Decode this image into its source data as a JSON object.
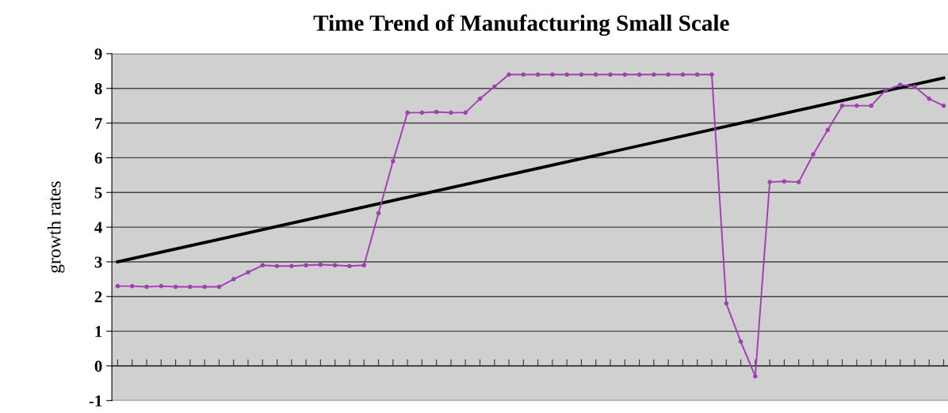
{
  "chart_data": {
    "type": "line",
    "title": "Time Trend of Manufacturing Small Scale",
    "ylabel": "growth rates",
    "categories": [
      null,
      null,
      null,
      null,
      null,
      null,
      null,
      null,
      null,
      null,
      null,
      null,
      null,
      null,
      null,
      null,
      null,
      null,
      null,
      null,
      null,
      null,
      null,
      null,
      null,
      null,
      null,
      null,
      null,
      null,
      null,
      null,
      null,
      null,
      null,
      null,
      null,
      null,
      null,
      null,
      null,
      null,
      null,
      null,
      null,
      null,
      null,
      null,
      null,
      null,
      null,
      null,
      null,
      null,
      null,
      null,
      null,
      null
    ],
    "series": [
      {
        "color": "#a040b0",
        "marker": "circle",
        "values": [
          2.3,
          2.3,
          2.28,
          2.3,
          2.28,
          2.28,
          2.28,
          2.28,
          2.5,
          2.7,
          2.9,
          2.88,
          2.88,
          2.9,
          2.92,
          2.9,
          2.88,
          2.9,
          4.4,
          5.9,
          7.3,
          7.3,
          7.32,
          7.3,
          7.3,
          7.7,
          8.05,
          8.4,
          8.4,
          8.4,
          8.4,
          8.4,
          8.4,
          8.4,
          8.4,
          8.4,
          8.4,
          8.4,
          8.4,
          8.4,
          8.4,
          8.4,
          1.8,
          0.7,
          -0.3,
          5.3,
          5.32,
          5.3,
          6.1,
          6.8,
          7.5,
          7.5,
          7.5,
          7.95,
          8.1,
          8.05,
          7.7,
          7.5
        ]
      },
      {
        "type": "line",
        "color": "#000000",
        "marker": "none",
        "values": [
          3.0,
          null,
          null,
          null,
          null,
          null,
          null,
          null,
          null,
          null,
          null,
          null,
          null,
          null,
          null,
          null,
          null,
          null,
          null,
          null,
          null,
          null,
          null,
          null,
          null,
          null,
          null,
          null,
          null,
          null,
          null,
          null,
          null,
          null,
          null,
          null,
          null,
          null,
          null,
          null,
          null,
          null,
          null,
          null,
          null,
          null,
          null,
          null,
          null,
          null,
          null,
          null,
          null,
          null,
          null,
          null,
          null,
          8.3
        ]
      }
    ],
    "ylim": [
      -1,
      9
    ],
    "yticks": [
      -1,
      0,
      1,
      2,
      3,
      4,
      5,
      6,
      7,
      8,
      9
    ],
    "grid": "y",
    "tick_labels": "y",
    "line_style": "solid"
  }
}
